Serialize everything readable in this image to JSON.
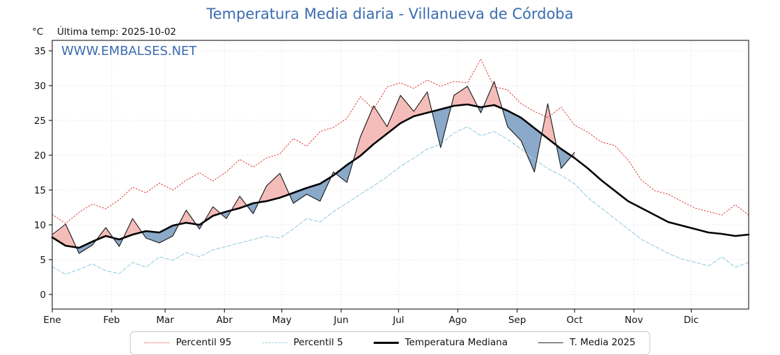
{
  "title": "Temperatura Media diaria - Villanueva de Córdoba",
  "y_axis_unit_label": "°C",
  "last_temp_label": "Última temp: 2025-10-02",
  "watermark": "WWW.EMBALSES.NET",
  "accent_color": "#3a6cb0",
  "legend": {
    "items": [
      {
        "label": "Percentil 95"
      },
      {
        "label": "Percentil 5"
      },
      {
        "label": "Temperatura Mediana"
      },
      {
        "label": "T. Media 2025"
      }
    ]
  },
  "chart_data": {
    "type": "line",
    "title": "Temperatura Media diaria - Villanueva de Córdoba",
    "xlabel": "",
    "ylabel": "°C",
    "ylim": [
      -2.1,
      36.5
    ],
    "yticks": [
      0,
      5,
      10,
      15,
      20,
      25,
      30,
      35
    ],
    "grid": true,
    "legend_position": "bottom",
    "x_unit": "day_of_year",
    "x_ticks": {
      "labels": [
        "Ene",
        "Feb",
        "Mar",
        "Abr",
        "May",
        "Jun",
        "Jul",
        "Ago",
        "Sep",
        "Oct",
        "Nov",
        "Dic"
      ],
      "days": [
        1,
        32,
        60,
        91,
        121,
        152,
        182,
        213,
        244,
        274,
        305,
        335
      ]
    },
    "x_days": [
      1,
      8,
      15,
      22,
      29,
      36,
      43,
      50,
      57,
      64,
      71,
      78,
      85,
      92,
      99,
      106,
      113,
      120,
      127,
      134,
      141,
      148,
      155,
      162,
      169,
      176,
      183,
      190,
      197,
      204,
      211,
      218,
      225,
      232,
      239,
      246,
      253,
      260,
      267,
      274,
      281,
      288,
      295,
      302,
      309,
      316,
      323,
      330,
      337,
      344,
      351,
      358,
      365
    ],
    "series": [
      {
        "name": "Percentil 95",
        "color": "#e04a42",
        "dash": "dotted",
        "width": 1.1,
        "values": [
          11.5,
          10.2,
          11.8,
          13.0,
          12.3,
          13.6,
          15.4,
          14.6,
          16.0,
          15.0,
          16.4,
          17.5,
          16.3,
          17.6,
          19.4,
          18.3,
          19.6,
          20.2,
          22.4,
          21.3,
          23.4,
          24.0,
          25.3,
          28.4,
          26.6,
          29.8,
          30.4,
          29.6,
          30.8,
          29.9,
          30.6,
          30.4,
          33.8,
          29.8,
          29.4,
          27.4,
          26.3,
          25.4,
          26.9,
          24.3,
          23.3,
          21.9,
          21.4,
          19.3,
          16.4,
          14.9,
          14.4,
          13.4,
          12.4,
          11.9,
          11.4,
          12.9,
          11.4
        ]
      },
      {
        "name": "Percentil 5",
        "color": "#9fd1e3",
        "dash": "dashed",
        "width": 1.2,
        "values": [
          4.0,
          2.9,
          3.6,
          4.4,
          3.4,
          3.0,
          4.6,
          3.9,
          5.4,
          4.9,
          6.0,
          5.4,
          6.4,
          6.9,
          7.4,
          7.9,
          8.4,
          8.1,
          9.4,
          10.9,
          10.4,
          11.9,
          13.1,
          14.4,
          15.6,
          16.9,
          18.4,
          19.6,
          20.9,
          21.6,
          23.2,
          24.1,
          22.8,
          23.4,
          22.3,
          20.9,
          19.4,
          18.1,
          17.1,
          15.9,
          13.9,
          12.4,
          10.9,
          9.4,
          7.9,
          6.9,
          5.9,
          5.1,
          4.6,
          4.1,
          5.4,
          3.9,
          4.6
        ]
      },
      {
        "name": "Temperatura Mediana",
        "color": "#000000",
        "dash": "solid",
        "width": 2.6,
        "values": [
          8.2,
          7.0,
          6.7,
          7.6,
          8.4,
          7.9,
          8.6,
          9.1,
          8.9,
          9.9,
          10.3,
          10.0,
          11.3,
          11.9,
          12.4,
          13.1,
          13.4,
          13.9,
          14.6,
          15.3,
          15.9,
          17.1,
          18.6,
          19.9,
          21.6,
          23.1,
          24.6,
          25.6,
          26.1,
          26.6,
          27.1,
          27.3,
          26.9,
          27.2,
          26.4,
          25.4,
          23.9,
          22.4,
          20.9,
          19.6,
          18.1,
          16.4,
          14.9,
          13.4,
          12.4,
          11.4,
          10.4,
          9.9,
          9.4,
          8.9,
          8.7,
          8.4,
          8.6
        ]
      },
      {
        "name": "T. Media 2025",
        "color": "#141414",
        "dash": "solid",
        "width": 1.1,
        "values": [
          8.6,
          10.1,
          5.9,
          7.1,
          9.6,
          6.9,
          10.9,
          8.1,
          7.4,
          8.4,
          12.1,
          9.4,
          12.6,
          10.9,
          14.1,
          11.6,
          15.6,
          17.4,
          13.1,
          14.4,
          13.4,
          17.6,
          16.1,
          22.6,
          27.1,
          24.1,
          28.6,
          26.3,
          29.1,
          21.1,
          28.6,
          29.9,
          26.1,
          30.6,
          24.1,
          22.1,
          17.6,
          27.4,
          18.1,
          20.4
        ]
      }
    ],
    "fill_between": {
      "series": "T. Media 2025",
      "reference": "Temperatura Mediana",
      "above_color": "#e8625a",
      "above_opacity": 0.42,
      "below_color": "#6e93ba",
      "below_opacity": 0.8
    }
  }
}
